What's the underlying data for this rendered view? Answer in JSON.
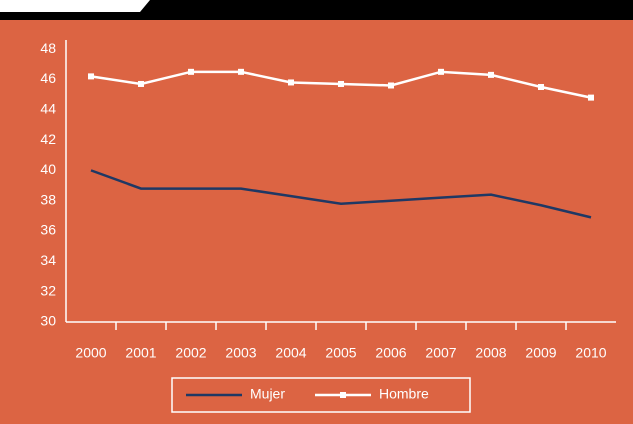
{
  "chart_data": {
    "type": "line",
    "categories": [
      "2000",
      "2001",
      "2002",
      "2003",
      "2004",
      "2005",
      "2006",
      "2007",
      "2008",
      "2009",
      "2010"
    ],
    "series": [
      {
        "name": "Mujer",
        "color": "#1f3864",
        "values": [
          40,
          38.8,
          38.8,
          38.8,
          38.3,
          37.8,
          38.0,
          38.2,
          38.4,
          37.7,
          36.9
        ]
      },
      {
        "name": "Hombre",
        "color": "#ffffff",
        "values": [
          46.2,
          45.7,
          46.5,
          46.5,
          45.8,
          45.7,
          45.6,
          46.5,
          46.3,
          45.5,
          44.8
        ]
      }
    ],
    "ylim": [
      30,
      48.6
    ],
    "yticks": [
      30,
      32,
      34,
      36,
      38,
      40,
      42,
      44,
      46,
      48
    ]
  }
}
